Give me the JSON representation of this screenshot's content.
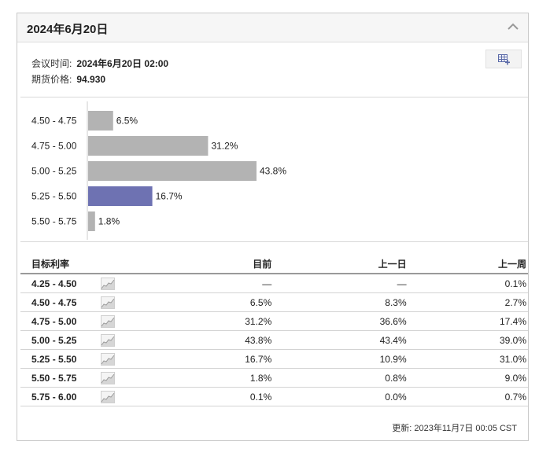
{
  "panel": {
    "title": "2024年6月20日",
    "collapse_icon": "chevron-up-icon",
    "export_icon": "table-export-icon"
  },
  "meeting": {
    "time_label": "会议时间:",
    "time_value": "2024年6月20日 02:00",
    "price_label": "期货价格:",
    "price_value": "94.930"
  },
  "colors": {
    "bar_default": "#b3b3b3",
    "bar_highlight": "#6e72b2"
  },
  "chart_data": {
    "type": "bar",
    "orientation": "horizontal",
    "categories": [
      "4.50 - 4.75",
      "4.75 - 5.00",
      "5.00 - 5.25",
      "5.25 - 5.50",
      "5.50 - 5.75"
    ],
    "values": [
      6.5,
      31.2,
      43.8,
      16.7,
      1.8
    ],
    "value_labels": [
      "6.5%",
      "31.2%",
      "43.8%",
      "16.7%",
      "1.8%"
    ],
    "highlight_index": 3,
    "xlim": [
      0,
      100
    ]
  },
  "table": {
    "headers": [
      "目标利率",
      "目前",
      "上一日",
      "上一周"
    ],
    "rows": [
      {
        "rate": "4.25 - 4.50",
        "now": "—",
        "day": "—",
        "week": "0.1%"
      },
      {
        "rate": "4.50 - 4.75",
        "now": "6.5%",
        "day": "8.3%",
        "week": "2.7%"
      },
      {
        "rate": "4.75 - 5.00",
        "now": "31.2%",
        "day": "36.6%",
        "week": "17.4%"
      },
      {
        "rate": "5.00 - 5.25",
        "now": "43.8%",
        "day": "43.4%",
        "week": "39.0%"
      },
      {
        "rate": "5.25 - 5.50",
        "now": "16.7%",
        "day": "10.9%",
        "week": "31.0%"
      },
      {
        "rate": "5.50 - 5.75",
        "now": "1.8%",
        "day": "0.8%",
        "week": "9.0%"
      },
      {
        "rate": "5.75 - 6.00",
        "now": "0.1%",
        "day": "0.0%",
        "week": "0.7%"
      }
    ],
    "spark_icon": "sparkline-chart-icon"
  },
  "footer": {
    "updated": "更新: 2023年11月7日 00:05 CST"
  }
}
